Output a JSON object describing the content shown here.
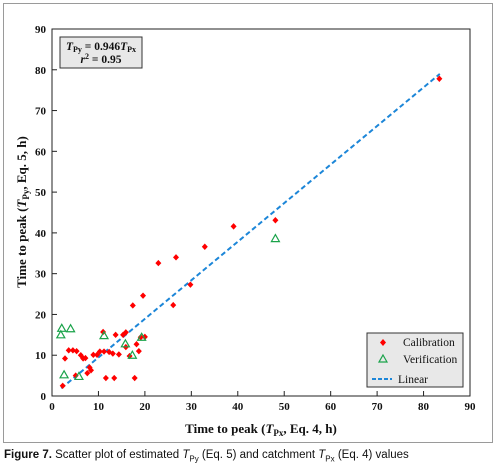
{
  "chart_data": {
    "type": "scatter",
    "xlabel": "Time to peak (TPx, Eq. 4, h)",
    "ylabel": "Time to peak (TPy, Eq. 5, h)",
    "xlim": [
      0,
      90
    ],
    "ylim": [
      0,
      90
    ],
    "xticks": [
      "0",
      "10",
      "20",
      "30",
      "40",
      "50",
      "60",
      "70",
      "80",
      "90"
    ],
    "yticks": [
      "0",
      "10",
      "20",
      "30",
      "40",
      "50",
      "60",
      "70",
      "80",
      "90"
    ],
    "grid": false,
    "legend_position": "bottom-right",
    "annotation": {
      "equation": "TPy = 0.946TPx",
      "r2": "r² = 0.95"
    },
    "series": [
      {
        "name": "Calibration",
        "marker": "diamond",
        "color": "#ff0000",
        "points": [
          [
            2.3,
            2.5
          ],
          [
            2.8,
            9.2
          ],
          [
            3.6,
            11.2
          ],
          [
            4.5,
            11.2
          ],
          [
            5.3,
            11.0
          ],
          [
            5.1,
            5.0
          ],
          [
            6.2,
            10.0
          ],
          [
            6.7,
            9.2
          ],
          [
            7.2,
            9.3
          ],
          [
            7.6,
            5.6
          ],
          [
            8.1,
            7.0
          ],
          [
            8.4,
            6.3
          ],
          [
            8.9,
            10.1
          ],
          [
            9.7,
            10.1
          ],
          [
            10.3,
            10.9
          ],
          [
            11.2,
            10.9
          ],
          [
            11.0,
            15.7
          ],
          [
            11.6,
            4.4
          ],
          [
            12.3,
            10.8
          ],
          [
            13.1,
            10.4
          ],
          [
            13.4,
            4.4
          ],
          [
            13.7,
            15.0
          ],
          [
            14.4,
            10.2
          ],
          [
            15.3,
            15.0
          ],
          [
            15.9,
            15.6
          ],
          [
            15.9,
            12.0
          ],
          [
            16.7,
            9.8
          ],
          [
            17.4,
            22.2
          ],
          [
            17.8,
            4.4
          ],
          [
            18.2,
            12.7
          ],
          [
            18.7,
            11.0
          ],
          [
            19.1,
            14.4
          ],
          [
            19.6,
            24.6
          ],
          [
            20.0,
            14.5
          ],
          [
            22.9,
            32.6
          ],
          [
            26.1,
            22.3
          ],
          [
            26.7,
            34.0
          ],
          [
            29.8,
            27.3
          ],
          [
            32.9,
            36.6
          ],
          [
            39.1,
            41.6
          ],
          [
            48.1,
            43.1
          ],
          [
            83.4,
            77.8
          ]
        ]
      },
      {
        "name": "Verification",
        "marker": "triangle",
        "color": "#1aa34a",
        "points": [
          [
            1.9,
            15.0
          ],
          [
            2.1,
            16.6
          ],
          [
            2.6,
            5.2
          ],
          [
            4.0,
            16.5
          ],
          [
            5.8,
            4.8
          ],
          [
            11.2,
            14.8
          ],
          [
            15.8,
            12.8
          ],
          [
            17.3,
            10.0
          ],
          [
            19.3,
            14.4
          ],
          [
            48.1,
            38.6
          ]
        ]
      },
      {
        "name": "Linear",
        "type": "line",
        "style": "dashed",
        "color": "#1c86d8",
        "slope": 0.946,
        "x_range": [
          2,
          83.5
        ]
      }
    ]
  }
}
